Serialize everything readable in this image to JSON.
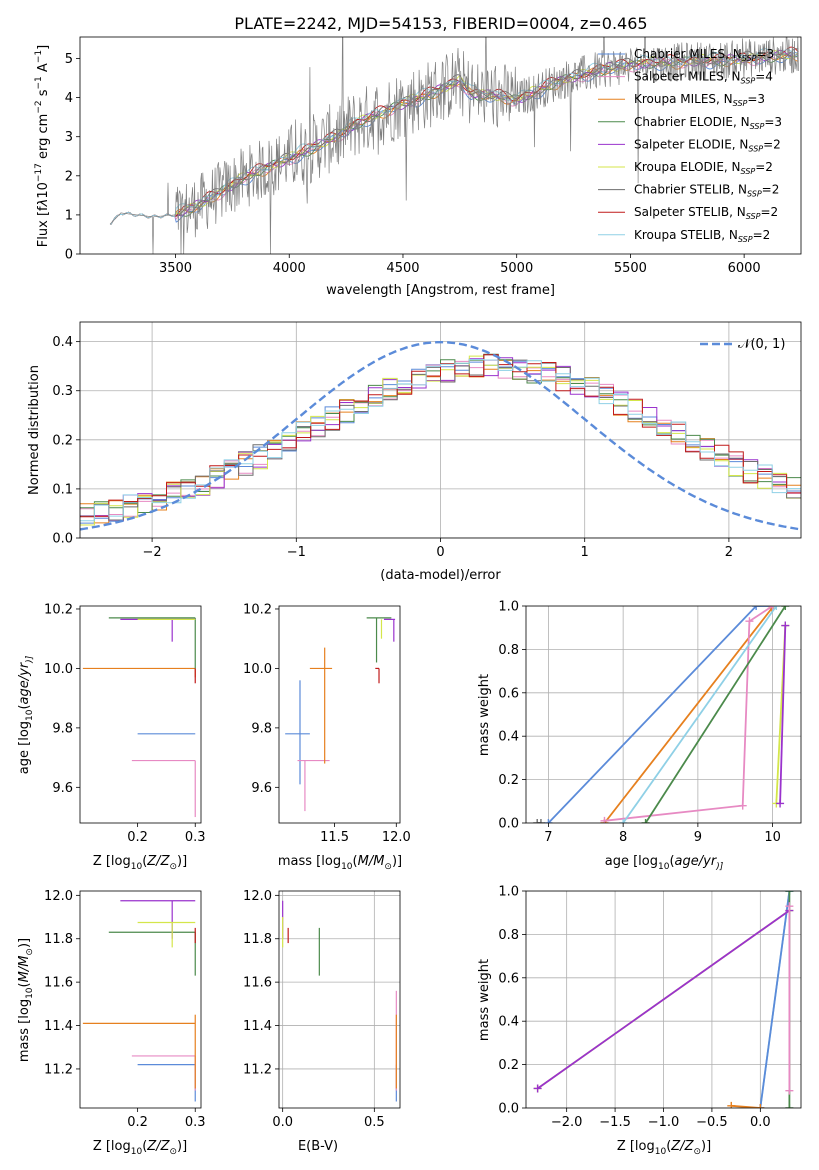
{
  "figure": {
    "title": "PLATE=2242, MJD=54153, FIBERID=0004, z=0.465"
  },
  "series_colors": {
    "Chabrier MILES": "#5b8bd9",
    "Salpeter MILES": "#e78ac3",
    "Kroupa MILES": "#e6801f",
    "Chabrier ELODIE": "#4b8a4b",
    "Salpeter ELODIE": "#9a32cd",
    "Kroupa ELODIE": "#d4e64a",
    "Chabrier STELIB": "#6e6e6e",
    "Salpeter STELIB": "#c01a1a",
    "Kroupa STELIB": "#8fd0e6"
  },
  "chart_data": [
    {
      "panel": "spectrum",
      "type": "line",
      "xlabel": "wavelength [Angstrom, rest frame]",
      "ylabel_parts": [
        "Flux [f",
        "λ",
        "10",
        "−17",
        " erg cm",
        "−2",
        " s",
        "−1",
        " A",
        "−1",
        "]"
      ],
      "xlim": [
        3080,
        6250
      ],
      "ylim": [
        0,
        5.55
      ],
      "xticks": [
        "3500",
        "4000",
        "4500",
        "5000",
        "5500",
        "6000"
      ],
      "yticks": [
        "0",
        "1",
        "2",
        "3",
        "4",
        "5"
      ],
      "legend": [
        {
          "name": "Chabrier MILES",
          "nssp": "3"
        },
        {
          "name": "Salpeter MILES",
          "nssp": "4"
        },
        {
          "name": "Kroupa MILES",
          "nssp": "3"
        },
        {
          "name": "Chabrier ELODIE",
          "nssp": "3"
        },
        {
          "name": "Salpeter ELODIE",
          "nssp": "2"
        },
        {
          "name": "Kroupa ELODIE",
          "nssp": "2"
        },
        {
          "name": "Chabrier STELIB",
          "nssp": "2"
        },
        {
          "name": "Salpeter STELIB",
          "nssp": "2"
        },
        {
          "name": "Kroupa STELIB",
          "nssp": "2"
        }
      ],
      "legend_label_template": "N",
      "legend_sub": "SSP",
      "continuum": {
        "x": [
          3210,
          3260,
          3400,
          3500,
          3600,
          3700,
          3800,
          3900,
          4000,
          4100,
          4200,
          4300,
          4400,
          4500,
          4600,
          4700,
          4750,
          4800,
          4900,
          5000,
          5100,
          5200,
          5300,
          5400,
          5500,
          5600,
          5700,
          5800,
          5900,
          6000,
          6100,
          6200
        ],
        "y": [
          0.75,
          1.05,
          0.95,
          1.0,
          1.25,
          1.6,
          1.95,
          2.2,
          2.45,
          2.7,
          3.0,
          3.35,
          3.6,
          3.85,
          4.05,
          4.3,
          4.45,
          4.1,
          4.05,
          3.95,
          4.2,
          4.45,
          4.6,
          4.75,
          4.85,
          4.9,
          4.9,
          4.95,
          4.95,
          5.0,
          5.05,
          5.1
        ]
      }
    },
    {
      "panel": "residuals",
      "type": "step",
      "xlabel": "(data-model)/error",
      "ylabel": "Normed distribution",
      "xlim": [
        -2.5,
        2.5
      ],
      "ylim": [
        0,
        0.44
      ],
      "xticks": [
        "−2",
        "−1",
        "0",
        "1",
        "2"
      ],
      "yticks": [
        "0.0",
        "0.1",
        "0.2",
        "0.3",
        "0.4"
      ],
      "legend": "𝒩(0, 1)",
      "gauss_color": "#5b8bd9"
    },
    {
      "panel": "age-Z",
      "type": "errorbar",
      "xlabel": "Z [log10(Z/Z⊙)]",
      "xlabel_parts": [
        "Z [log",
        "10",
        "(",
        "Z/Z",
        "⊙",
        ")]"
      ],
      "ylabel_parts": [
        "age  [log",
        "10",
        "(",
        "age/yr",
        ")]"
      ],
      "xlim": [
        0.1,
        0.31
      ],
      "ylim": [
        9.48,
        10.21
      ],
      "xticks": [
        "0.2",
        "0.3"
      ],
      "yticks": [
        "9.6",
        "9.8",
        "10.0",
        "10.2"
      ],
      "points": [
        {
          "s": "Chabrier MILES",
          "x": 0.3,
          "xlo": 0.2,
          "xhi": 0.3,
          "y": 9.78,
          "ylo": 9.78,
          "yhi": 9.78
        },
        {
          "s": "Salpeter MILES",
          "x": 0.3,
          "xlo": 0.19,
          "xhi": 0.3,
          "y": 9.69,
          "ylo": 9.5,
          "yhi": 9.69
        },
        {
          "s": "Kroupa MILES",
          "x": 0.3,
          "xlo": 0.105,
          "xhi": 0.3,
          "y": 10.0,
          "ylo": 9.97,
          "yhi": 10.0
        },
        {
          "s": "Chabrier ELODIE",
          "x": 0.3,
          "xlo": 0.15,
          "xhi": 0.3,
          "y": 10.17,
          "ylo": 10.0,
          "yhi": 10.17
        },
        {
          "s": "Salpeter ELODIE",
          "x": 0.26,
          "xlo": 0.17,
          "xhi": 0.3,
          "y": 10.165,
          "ylo": 10.09,
          "yhi": 10.165
        },
        {
          "s": "Kroupa ELODIE",
          "x": 0.3,
          "xlo": 0.2,
          "xhi": 0.3,
          "y": 10.165,
          "ylo": 10.165,
          "yhi": 10.165
        },
        {
          "s": "Salpeter STELIB",
          "x": 0.3,
          "xlo": 0.3,
          "xhi": 0.3,
          "y": 10.0,
          "ylo": 9.95,
          "yhi": 10.0
        }
      ]
    },
    {
      "panel": "age-mass",
      "type": "errorbar",
      "xlabel_parts": [
        "mass [log",
        "10",
        "(",
        "M/M",
        "⊙",
        ")]"
      ],
      "xlim": [
        11.05,
        12.03
      ],
      "ylim": [
        9.48,
        10.21
      ],
      "xticks": [
        "11.5",
        "12.0"
      ],
      "yticks": [
        "9.6",
        "9.8",
        "10.0",
        "10.2"
      ],
      "points": [
        {
          "s": "Chabrier MILES",
          "x": 11.22,
          "xlo": 11.1,
          "xhi": 11.3,
          "y": 9.78,
          "ylo": 9.61,
          "yhi": 9.96
        },
        {
          "s": "Salpeter MILES",
          "x": 11.26,
          "xlo": 11.2,
          "xhi": 11.46,
          "y": 9.69,
          "ylo": 9.52,
          "yhi": 9.69
        },
        {
          "s": "Kroupa MILES",
          "x": 11.42,
          "xlo": 11.3,
          "xhi": 11.48,
          "y": 10.0,
          "ylo": 9.68,
          "yhi": 10.07
        },
        {
          "s": "Chabrier ELODIE",
          "x": 11.84,
          "xlo": 11.76,
          "xhi": 11.96,
          "y": 10.17,
          "ylo": 10.02,
          "yhi": 10.17
        },
        {
          "s": "Salpeter ELODIE",
          "x": 11.98,
          "xlo": 11.9,
          "xhi": 11.99,
          "y": 10.165,
          "ylo": 10.09,
          "yhi": 10.165
        },
        {
          "s": "Kroupa ELODIE",
          "x": 11.88,
          "xlo": 11.88,
          "xhi": 11.88,
          "y": 10.165,
          "ylo": 10.1,
          "yhi": 10.165
        },
        {
          "s": "Salpeter STELIB",
          "x": 11.86,
          "xlo": 11.83,
          "xhi": 11.86,
          "y": 10.0,
          "ylo": 9.95,
          "yhi": 10.0
        }
      ]
    },
    {
      "panel": "weight-age",
      "type": "line",
      "xlabel_parts": [
        "age  [log",
        "10",
        "(",
        "age/yr",
        ")]"
      ],
      "ylabel": "mass weight",
      "xlim": [
        6.7,
        10.38
      ],
      "ylim": [
        0,
        1
      ],
      "xticks": [
        "7",
        "8",
        "9",
        "10"
      ],
      "yticks": [
        "0.0",
        "0.2",
        "0.4",
        "0.6",
        "0.8",
        "1.0"
      ],
      "series": [
        {
          "s": "Chabrier MILES",
          "x": [
            7.0,
            9.78,
            10.0
          ],
          "y": [
            0,
            1,
            1
          ]
        },
        {
          "s": "Kroupa MILES",
          "x": [
            7.75,
            9.99,
            10.0
          ],
          "y": [
            0,
            0.99,
            1
          ]
        },
        {
          "s": "Salpeter MILES",
          "x": [
            7.75,
            9.6,
            9.69,
            10.0
          ],
          "y": [
            0.01,
            0.08,
            0.93,
            1
          ]
        },
        {
          "s": "Chabrier ELODIE",
          "x": [
            8.3,
            10.17
          ],
          "y": [
            0,
            1
          ]
        },
        {
          "s": "Kroupa STELIB",
          "x": [
            8.0,
            10.05
          ],
          "y": [
            0,
            1
          ]
        },
        {
          "s": "Kroupa ELODIE",
          "x": [
            10.05,
            10.17
          ],
          "y": [
            0.09,
            0.91
          ]
        },
        {
          "s": "Salpeter ELODIE",
          "x": [
            10.1,
            10.17
          ],
          "y": [
            0.09,
            0.91
          ]
        },
        {
          "s": "Chabrier STELIB",
          "x": [
            6.85,
            6.9
          ],
          "y": [
            0,
            0
          ]
        }
      ]
    },
    {
      "panel": "mass-Z",
      "type": "errorbar",
      "xlabel_parts": [
        "Z [log",
        "10",
        "(",
        "Z/Z",
        "⊙",
        ")]"
      ],
      "ylabel_parts": [
        "mass [log",
        "10",
        "(",
        "M/M",
        "⊙",
        ")]"
      ],
      "xlim": [
        0.1,
        0.31
      ],
      "ylim": [
        11.02,
        12.02
      ],
      "xticks": [
        "0.2",
        "0.3"
      ],
      "yticks": [
        "11.2",
        "11.4",
        "11.6",
        "11.8",
        "12.0"
      ],
      "points": [
        {
          "s": "Chabrier MILES",
          "x": 0.3,
          "xlo": 0.2,
          "xhi": 0.3,
          "y": 11.22,
          "ylo": 11.05,
          "yhi": 11.22
        },
        {
          "s": "Salpeter MILES",
          "x": 0.3,
          "xlo": 0.19,
          "xhi": 0.3,
          "y": 11.26,
          "ylo": 11.1,
          "yhi": 11.26
        },
        {
          "s": "Kroupa MILES",
          "x": 0.3,
          "xlo": 0.105,
          "xhi": 0.3,
          "y": 11.41,
          "ylo": 11.11,
          "yhi": 11.45
        },
        {
          "s": "Chabrier ELODIE",
          "x": 0.3,
          "xlo": 0.15,
          "xhi": 0.3,
          "y": 11.83,
          "ylo": 11.63,
          "yhi": 11.83
        },
        {
          "s": "Salpeter ELODIE",
          "x": 0.26,
          "xlo": 0.17,
          "xhi": 0.3,
          "y": 11.975,
          "ylo": 11.8,
          "yhi": 11.975
        },
        {
          "s": "Kroupa ELODIE",
          "x": 0.26,
          "xlo": 0.2,
          "xhi": 0.3,
          "y": 11.875,
          "ylo": 11.76,
          "yhi": 11.875
        },
        {
          "s": "Salpeter STELIB",
          "x": 0.3,
          "xlo": 0.3,
          "xhi": 0.3,
          "y": 11.82,
          "ylo": 11.78,
          "yhi": 11.85
        }
      ]
    },
    {
      "panel": "mass-EBV",
      "type": "errorbar",
      "xlabel": "E(B-V)",
      "xlim": [
        -0.02,
        0.64
      ],
      "ylim": [
        11.02,
        12.02
      ],
      "xticks": [
        "0.0",
        "0.5"
      ],
      "yticks": [
        "11.2",
        "11.4",
        "11.6",
        "11.8",
        "12.0"
      ],
      "points": [
        {
          "s": "Chabrier MILES",
          "x": 0.62,
          "xlo": 0.62,
          "xhi": 0.62,
          "y": 11.22,
          "ylo": 11.05,
          "yhi": 11.22
        },
        {
          "s": "Salpeter MILES",
          "x": 0.62,
          "xlo": 0.62,
          "xhi": 0.62,
          "y": 11.26,
          "ylo": 11.1,
          "yhi": 11.56
        },
        {
          "s": "Kroupa MILES",
          "x": 0.62,
          "xlo": 0.62,
          "xhi": 0.62,
          "y": 11.41,
          "ylo": 11.11,
          "yhi": 11.45
        },
        {
          "s": "Chabrier ELODIE",
          "x": 0.2,
          "xlo": 0.2,
          "xhi": 0.2,
          "y": 11.83,
          "ylo": 11.63,
          "yhi": 11.85
        },
        {
          "s": "Salpeter ELODIE",
          "x": 0.0,
          "xlo": 0.0,
          "xhi": 0.0,
          "y": 11.975,
          "ylo": 11.8,
          "yhi": 11.975
        },
        {
          "s": "Kroupa ELODIE",
          "x": 0.0,
          "xlo": 0.0,
          "xhi": 0.0,
          "y": 11.875,
          "ylo": 11.76,
          "yhi": 11.9
        },
        {
          "s": "Salpeter STELIB",
          "x": 0.03,
          "xlo": 0.03,
          "xhi": 0.03,
          "y": 11.82,
          "ylo": 11.78,
          "yhi": 11.85
        }
      ]
    },
    {
      "panel": "weight-Z",
      "type": "line",
      "xlabel_parts": [
        "Z [log",
        "10",
        "(",
        "Z/Z",
        "⊙",
        ")]"
      ],
      "ylabel": "mass weight",
      "xlim": [
        -2.42,
        0.42
      ],
      "ylim": [
        0,
        1
      ],
      "xticks": [
        "−2.0",
        "−1.5",
        "−1.0",
        "−0.5",
        "0.0"
      ],
      "yticks": [
        "0.0",
        "0.2",
        "0.4",
        "0.6",
        "0.8",
        "1.0"
      ],
      "series": [
        {
          "s": "Kroupa STELIB",
          "x": [
            0.0,
            0.3
          ],
          "y": [
            0,
            1
          ]
        },
        {
          "s": "Chabrier MILES",
          "x": [
            0.0,
            0.3
          ],
          "y": [
            0,
            1
          ]
        },
        {
          "s": "Kroupa ELODIE",
          "x": [
            -2.3,
            0.3
          ],
          "y": [
            0.09,
            0.91
          ]
        },
        {
          "s": "Salpeter ELODIE",
          "x": [
            -2.3,
            0.3
          ],
          "y": [
            0.09,
            0.91
          ]
        },
        {
          "s": "Chabrier ELODIE",
          "x": [
            0.3,
            0.3
          ],
          "y": [
            0,
            1
          ]
        },
        {
          "s": "Kroupa MILES",
          "x": [
            -0.3,
            0.0
          ],
          "y": [
            0.01,
            0
          ]
        },
        {
          "s": "Salpeter MILES",
          "x": [
            0.3,
            0.3
          ],
          "y": [
            0.08,
            0.93
          ]
        }
      ]
    }
  ]
}
